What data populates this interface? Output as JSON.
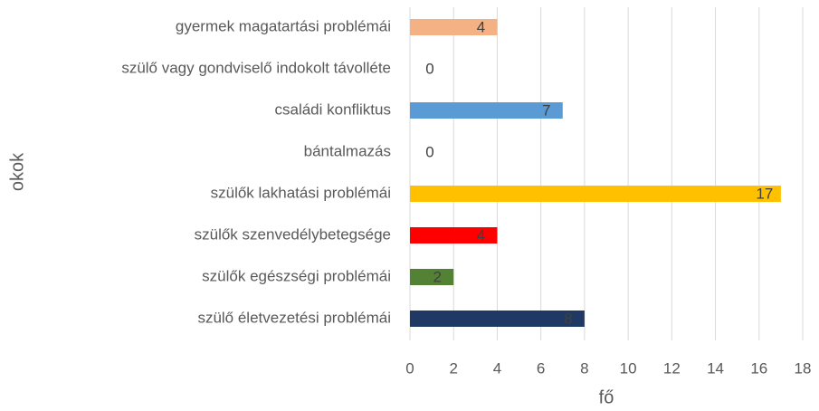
{
  "chart_data": {
    "type": "barh",
    "categories": [
      "gyermek magatartási problémái",
      "szülő vagy gondviselő indokolt távolléte",
      "családi konfliktus",
      "bántalmazás",
      "szülők lakhatási problémái",
      "szülők szenvedélybetegsége",
      "szülők egészségi problémái",
      "szülő életvezetési problémái"
    ],
    "values": [
      4,
      0,
      7,
      0,
      17,
      4,
      2,
      8
    ],
    "colors": [
      "#f4b183",
      null,
      "#5b9bd5",
      null,
      "#ffc000",
      "#ff0000",
      "#548235",
      "#203864"
    ],
    "xlabel": "fő",
    "ylabel": "okok",
    "xlim": [
      0,
      18
    ],
    "xticks": [
      0,
      2,
      4,
      6,
      8,
      10,
      12,
      14,
      16,
      18
    ],
    "grid": true
  }
}
